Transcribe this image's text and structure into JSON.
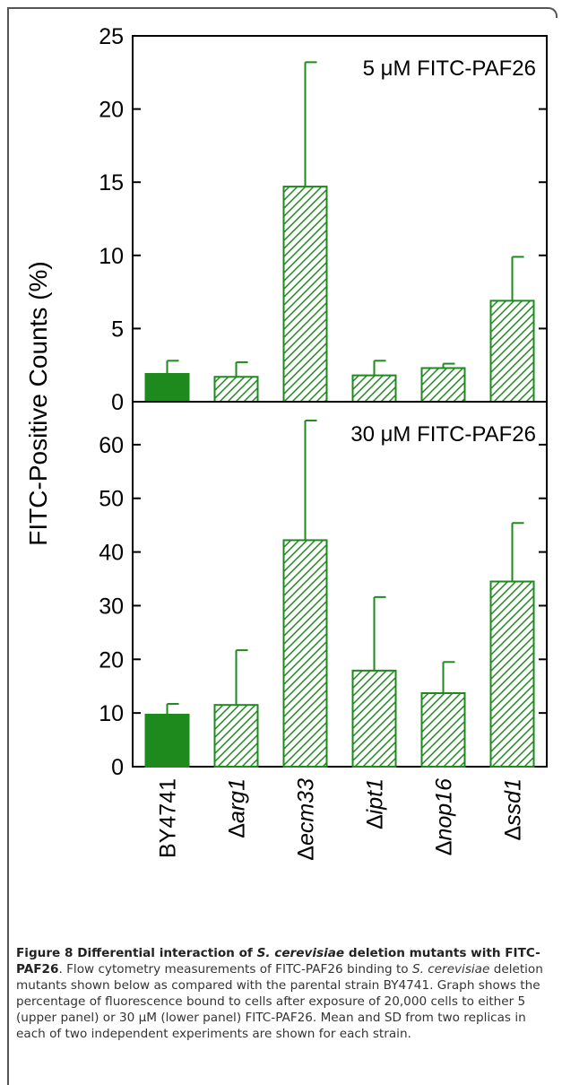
{
  "chart_data": [
    {
      "type": "bar",
      "panel_label": "5 μM FITC-PAF26",
      "categories": [
        "BY4741",
        "Δarg1",
        "Δecm33",
        "Δipt1",
        "Δnop16",
        "Δssd1"
      ],
      "values": [
        1.9,
        1.7,
        14.7,
        1.8,
        2.3,
        6.9
      ],
      "errors": [
        0.9,
        1.0,
        8.5,
        1.0,
        0.3,
        3.0
      ],
      "ylim": [
        0,
        25
      ],
      "yticks": [
        0,
        5,
        10,
        15,
        20,
        25
      ],
      "ylabel": "FITC-Positive Counts (%)",
      "fill": [
        "solid",
        "hatched",
        "hatched",
        "hatched",
        "hatched",
        "hatched"
      ]
    },
    {
      "type": "bar",
      "panel_label": "30 μM FITC-PAF26",
      "categories": [
        "BY4741",
        "Δarg1",
        "Δecm33",
        "Δipt1",
        "Δnop16",
        "Δssd1"
      ],
      "values": [
        9.7,
        11.5,
        42.2,
        17.9,
        13.7,
        34.5
      ],
      "errors": [
        2.0,
        10.2,
        22.3,
        13.7,
        5.8,
        10.9
      ],
      "ylim": [
        0,
        68
      ],
      "yticks": [
        0,
        10,
        20,
        30,
        40,
        50,
        60
      ],
      "ylabel": "FITC-Positive Counts (%)",
      "fill": [
        "solid",
        "hatched",
        "hatched",
        "hatched",
        "hatched",
        "hatched"
      ]
    }
  ],
  "colors": {
    "bar": "#1e8a1e",
    "axis": "#000000"
  },
  "caption": {
    "title_parts": [
      "Figure 8 Differential interaction of ",
      "S. cerevisiae",
      " deletion mutants with FITC-PAF26"
    ],
    "body_parts": [
      ". Flow cytometry measurements of FITC-PAF26 binding to ",
      "S. cerevisiae",
      " deletion mutants shown below as compared with the parental strain BY4741. Graph shows the percentage of fluorescence bound to cells after exposure of 20,000 cells to either 5 (upper panel) or 30 μM (lower panel) FITC-PAF26. Mean and SD from two replicas in each of two independent experiments are shown for each strain."
    ]
  }
}
